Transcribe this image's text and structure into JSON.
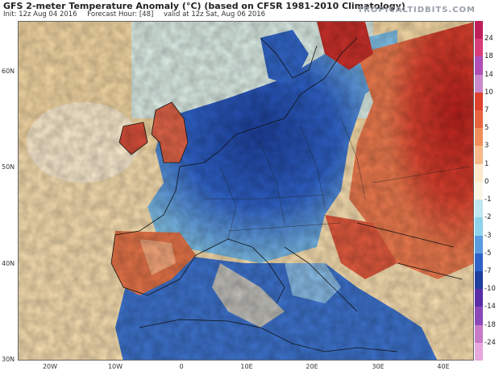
{
  "header": {
    "title": "GFS 2-meter Temperature Anomaly (°C) (based on CFSR 1981-2010 Climatology)",
    "init": "Init: 12z Aug 04 2016",
    "forecast_hour": "Forecast Hour: [48]",
    "valid": "valid at 12z Sat, Aug 06 2016",
    "brand": "TROPICALTIDBITS.COM"
  },
  "axes": {
    "lat_labels": [
      "60N",
      "50N",
      "40N",
      "30N"
    ],
    "lon_labels": [
      "20W",
      "10W",
      "0",
      "10E",
      "20E",
      "30E",
      "40E"
    ]
  },
  "colorbar": {
    "labels": [
      "24",
      "18",
      "14",
      "10",
      "7",
      "5",
      "3",
      "1",
      "0",
      "-1",
      "-2",
      "-3",
      "-5",
      "-7",
      "-10",
      "-14",
      "-18",
      "-24"
    ],
    "colors": [
      "#c0205a",
      "#d83c7a",
      "#b04fb8",
      "#c98acb",
      "#e0412e",
      "#e8633f",
      "#f08f5a",
      "#f7b98a",
      "#fde9cc",
      "#fbf6e4",
      "#bfe7f0",
      "#8fd3ea",
      "#5b9ce0",
      "#2f62c8",
      "#1e3f9e",
      "#5a2ea8",
      "#8a48b8",
      "#c87ac8",
      "#e6a8de"
    ]
  },
  "map": {
    "ocean_color": "#f7deb0",
    "land_border_color": "#111111",
    "warm_color": "#e04a36",
    "cold_color": "#2f5fc4"
  }
}
